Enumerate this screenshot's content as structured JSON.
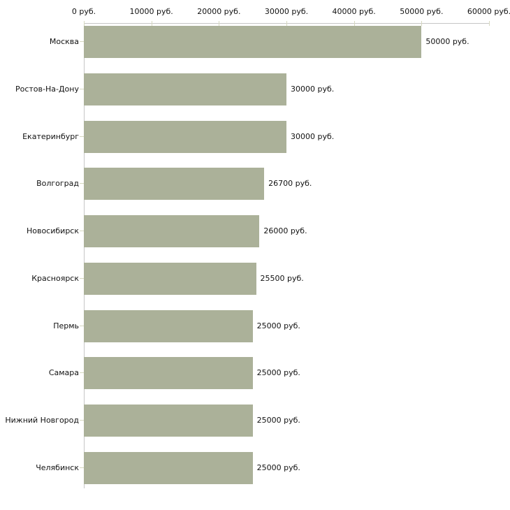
{
  "chart_data": {
    "type": "bar",
    "orientation": "horizontal",
    "categories": [
      "Москва",
      "Ростов-На-Дону",
      "Екатеринбург",
      "Волгоград",
      "Новосибирск",
      "Красноярск",
      "Пермь",
      "Самара",
      "Нижний Новгород",
      "Челябинск"
    ],
    "values": [
      50000,
      30000,
      30000,
      26700,
      26000,
      25500,
      25000,
      25000,
      25000,
      25000
    ],
    "value_labels": [
      "50000 руб.",
      "30000 руб.",
      "30000 руб.",
      "26700 руб.",
      "26000 руб.",
      "25500 руб.",
      "25000 руб.",
      "25000 руб.",
      "25000 руб.",
      "25000 руб."
    ],
    "x_ticks": [
      0,
      10000,
      20000,
      30000,
      40000,
      50000,
      60000
    ],
    "x_tick_labels": [
      "0 руб.",
      "10000 руб.",
      "20000 руб.",
      "30000 руб.",
      "40000 руб.",
      "50000 руб.",
      "60000 руб."
    ],
    "xlim": [
      0,
      60000
    ],
    "unit": "руб.",
    "grid": false,
    "legend_position": "none",
    "colors": {
      "bar": "#abb199",
      "axis": "#c6c6c6",
      "tick": "#d6d8c0",
      "text": "#111111",
      "background": "#ffffff"
    }
  }
}
